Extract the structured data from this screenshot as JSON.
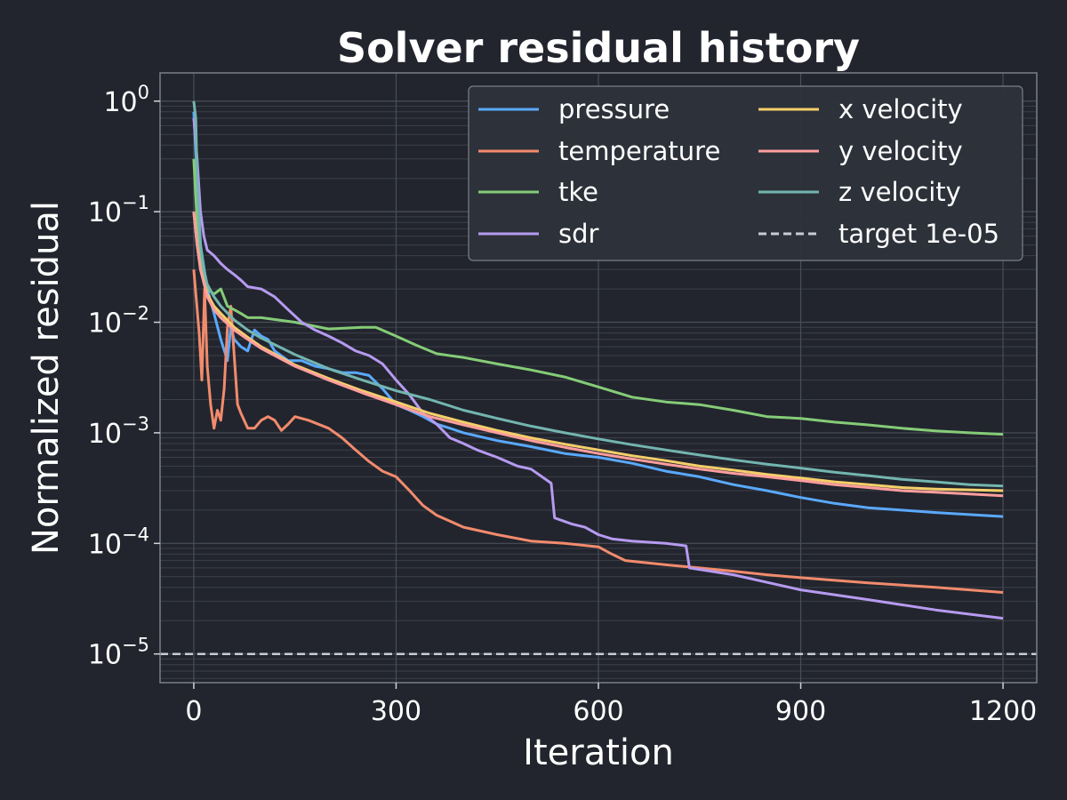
{
  "chart_data": {
    "type": "line",
    "title": "Solver residual history",
    "xlabel": "Iteration",
    "ylabel": "Normalized residual",
    "xlim": [
      -50,
      1250
    ],
    "ylim": [
      5.5e-06,
      1.8
    ],
    "yscale": "log",
    "x_ticks": [
      0,
      300,
      600,
      900,
      1200
    ],
    "x_tick_labels": [
      "0",
      "300",
      "600",
      "900",
      "1200"
    ],
    "y_ticks": [
      1e-05,
      0.0001,
      0.001,
      0.01,
      0.1,
      1
    ],
    "y_tick_labels": [
      {
        "base": "10",
        "exp": "−5"
      },
      {
        "base": "10",
        "exp": "−4"
      },
      {
        "base": "10",
        "exp": "−3"
      },
      {
        "base": "10",
        "exp": "−2"
      },
      {
        "base": "10",
        "exp": "−1"
      },
      {
        "base": "10",
        "exp": "0"
      }
    ],
    "grid": true,
    "legend_position": "top-right",
    "legend_columns": 2,
    "series": [
      {
        "name": "pressure",
        "color": "#5aa9ff",
        "points": [
          [
            0,
            0.8
          ],
          [
            10,
            0.05
          ],
          [
            20,
            0.02
          ],
          [
            30,
            0.012
          ],
          [
            40,
            0.007
          ],
          [
            50,
            0.0045
          ],
          [
            55,
            0.009
          ],
          [
            60,
            0.007
          ],
          [
            70,
            0.006
          ],
          [
            80,
            0.0055
          ],
          [
            90,
            0.0085
          ],
          [
            100,
            0.0075
          ],
          [
            110,
            0.007
          ],
          [
            120,
            0.0055
          ],
          [
            140,
            0.0045
          ],
          [
            160,
            0.0045
          ],
          [
            180,
            0.004
          ],
          [
            200,
            0.0038
          ],
          [
            220,
            0.0035
          ],
          [
            240,
            0.0035
          ],
          [
            260,
            0.0033
          ],
          [
            280,
            0.0025
          ],
          [
            300,
            0.0018
          ],
          [
            320,
            0.0016
          ],
          [
            340,
            0.0014
          ],
          [
            360,
            0.0012
          ],
          [
            380,
            0.0011
          ],
          [
            400,
            0.001
          ],
          [
            450,
            0.00085
          ],
          [
            500,
            0.00075
          ],
          [
            550,
            0.00065
          ],
          [
            600,
            0.0006
          ],
          [
            650,
            0.00053
          ],
          [
            700,
            0.00045
          ],
          [
            750,
            0.0004
          ],
          [
            800,
            0.00034
          ],
          [
            850,
            0.0003
          ],
          [
            900,
            0.00026
          ],
          [
            950,
            0.00023
          ],
          [
            1000,
            0.00021
          ],
          [
            1050,
            0.0002
          ],
          [
            1100,
            0.00019
          ],
          [
            1200,
            0.000175
          ]
        ]
      },
      {
        "name": "temperature",
        "color": "#f28b6d",
        "points": [
          [
            0,
            0.03
          ],
          [
            8,
            0.008
          ],
          [
            12,
            0.003
          ],
          [
            16,
            0.02
          ],
          [
            20,
            0.004
          ],
          [
            25,
            0.0018
          ],
          [
            30,
            0.0011
          ],
          [
            35,
            0.0016
          ],
          [
            40,
            0.0013
          ],
          [
            45,
            0.0025
          ],
          [
            50,
            0.009
          ],
          [
            55,
            0.014
          ],
          [
            60,
            0.005
          ],
          [
            65,
            0.0018
          ],
          [
            70,
            0.0015
          ],
          [
            80,
            0.0011
          ],
          [
            90,
            0.0011
          ],
          [
            100,
            0.0013
          ],
          [
            110,
            0.0014
          ],
          [
            120,
            0.0013
          ],
          [
            130,
            0.00105
          ],
          [
            140,
            0.0012
          ],
          [
            150,
            0.0014
          ],
          [
            170,
            0.0013
          ],
          [
            200,
            0.0011
          ],
          [
            220,
            0.0009
          ],
          [
            240,
            0.0007
          ],
          [
            260,
            0.00055
          ],
          [
            280,
            0.00045
          ],
          [
            300,
            0.0004
          ],
          [
            320,
            0.0003
          ],
          [
            340,
            0.00022
          ],
          [
            360,
            0.00018
          ],
          [
            400,
            0.00014
          ],
          [
            450,
            0.00012
          ],
          [
            500,
            0.000105
          ],
          [
            550,
            0.0001
          ],
          [
            600,
            9.3e-05
          ],
          [
            620,
            8e-05
          ],
          [
            640,
            7e-05
          ],
          [
            700,
            6.4e-05
          ],
          [
            750,
            6e-05
          ],
          [
            800,
            5.6e-05
          ],
          [
            850,
            5.2e-05
          ],
          [
            900,
            4.9e-05
          ],
          [
            1000,
            4.4e-05
          ],
          [
            1100,
            4e-05
          ],
          [
            1200,
            3.6e-05
          ]
        ]
      },
      {
        "name": "tke",
        "color": "#85cc78",
        "points": [
          [
            0,
            0.3
          ],
          [
            5,
            0.08
          ],
          [
            10,
            0.04
          ],
          [
            20,
            0.02
          ],
          [
            30,
            0.018
          ],
          [
            40,
            0.02
          ],
          [
            50,
            0.014
          ],
          [
            60,
            0.013
          ],
          [
            70,
            0.012
          ],
          [
            80,
            0.011
          ],
          [
            100,
            0.011
          ],
          [
            150,
            0.01
          ],
          [
            200,
            0.0087
          ],
          [
            250,
            0.009
          ],
          [
            270,
            0.009
          ],
          [
            300,
            0.0075
          ],
          [
            330,
            0.0062
          ],
          [
            360,
            0.0052
          ],
          [
            400,
            0.0048
          ],
          [
            450,
            0.0042
          ],
          [
            500,
            0.0037
          ],
          [
            550,
            0.0032
          ],
          [
            600,
            0.0026
          ],
          [
            650,
            0.0021
          ],
          [
            700,
            0.0019
          ],
          [
            750,
            0.0018
          ],
          [
            800,
            0.0016
          ],
          [
            850,
            0.0014
          ],
          [
            900,
            0.00135
          ],
          [
            950,
            0.00125
          ],
          [
            1000,
            0.00118
          ],
          [
            1050,
            0.0011
          ],
          [
            1100,
            0.00104
          ],
          [
            1150,
            0.001
          ],
          [
            1200,
            0.00097
          ]
        ]
      },
      {
        "name": "sdr",
        "color": "#b69af0",
        "points": [
          [
            0,
            0.7
          ],
          [
            5,
            0.3
          ],
          [
            10,
            0.1
          ],
          [
            15,
            0.06
          ],
          [
            20,
            0.045
          ],
          [
            30,
            0.04
          ],
          [
            40,
            0.034
          ],
          [
            50,
            0.03
          ],
          [
            60,
            0.027
          ],
          [
            70,
            0.024
          ],
          [
            80,
            0.021
          ],
          [
            100,
            0.02
          ],
          [
            120,
            0.017
          ],
          [
            140,
            0.013
          ],
          [
            160,
            0.01
          ],
          [
            180,
            0.0085
          ],
          [
            200,
            0.0075
          ],
          [
            220,
            0.0065
          ],
          [
            240,
            0.0055
          ],
          [
            260,
            0.005
          ],
          [
            280,
            0.0042
          ],
          [
            300,
            0.003
          ],
          [
            320,
            0.0022
          ],
          [
            340,
            0.0015
          ],
          [
            360,
            0.0012
          ],
          [
            380,
            0.0009
          ],
          [
            400,
            0.0008
          ],
          [
            420,
            0.0007
          ],
          [
            450,
            0.0006
          ],
          [
            480,
            0.0005
          ],
          [
            500,
            0.00047
          ],
          [
            530,
            0.00035
          ],
          [
            535,
            0.00017
          ],
          [
            560,
            0.00015
          ],
          [
            580,
            0.00014
          ],
          [
            600,
            0.00012
          ],
          [
            620,
            0.00011
          ],
          [
            650,
            0.000105
          ],
          [
            700,
            0.0001
          ],
          [
            730,
            9.5e-05
          ],
          [
            735,
            6e-05
          ],
          [
            800,
            5.2e-05
          ],
          [
            900,
            3.8e-05
          ],
          [
            1000,
            3.1e-05
          ],
          [
            1100,
            2.5e-05
          ],
          [
            1200,
            2.1e-05
          ]
        ]
      },
      {
        "name": "x velocity",
        "color": "#f5cf6a",
        "points": [
          [
            0,
            0.1
          ],
          [
            5,
            0.05
          ],
          [
            10,
            0.03
          ],
          [
            20,
            0.018
          ],
          [
            30,
            0.014
          ],
          [
            40,
            0.012
          ],
          [
            60,
            0.009
          ],
          [
            80,
            0.0073
          ],
          [
            100,
            0.006
          ],
          [
            150,
            0.0041
          ],
          [
            200,
            0.0031
          ],
          [
            250,
            0.0024
          ],
          [
            300,
            0.0019
          ],
          [
            350,
            0.0015
          ],
          [
            400,
            0.00125
          ],
          [
            450,
            0.00105
          ],
          [
            500,
            0.0009
          ],
          [
            550,
            0.00079
          ],
          [
            600,
            0.0007
          ],
          [
            650,
            0.00062
          ],
          [
            700,
            0.00056
          ],
          [
            750,
            0.0005
          ],
          [
            800,
            0.00046
          ],
          [
            850,
            0.00042
          ],
          [
            900,
            0.00039
          ],
          [
            950,
            0.00036
          ],
          [
            1000,
            0.00034
          ],
          [
            1050,
            0.00032
          ],
          [
            1100,
            0.00031
          ],
          [
            1150,
            0.000305
          ],
          [
            1200,
            0.0003
          ]
        ]
      },
      {
        "name": "y velocity",
        "color": "#ff9e9e",
        "points": [
          [
            0,
            0.1
          ],
          [
            5,
            0.05
          ],
          [
            10,
            0.03
          ],
          [
            20,
            0.017
          ],
          [
            30,
            0.013
          ],
          [
            40,
            0.011
          ],
          [
            60,
            0.0085
          ],
          [
            80,
            0.007
          ],
          [
            100,
            0.0058
          ],
          [
            150,
            0.004
          ],
          [
            200,
            0.003
          ],
          [
            250,
            0.0023
          ],
          [
            300,
            0.0018
          ],
          [
            350,
            0.0014
          ],
          [
            400,
            0.00118
          ],
          [
            450,
            0.001
          ],
          [
            500,
            0.00085
          ],
          [
            550,
            0.00074
          ],
          [
            600,
            0.00065
          ],
          [
            650,
            0.00058
          ],
          [
            700,
            0.00052
          ],
          [
            750,
            0.00047
          ],
          [
            800,
            0.00043
          ],
          [
            850,
            0.0004
          ],
          [
            900,
            0.00037
          ],
          [
            950,
            0.00034
          ],
          [
            1000,
            0.00032
          ],
          [
            1050,
            0.0003
          ],
          [
            1100,
            0.00029
          ],
          [
            1150,
            0.00028
          ],
          [
            1200,
            0.00027
          ]
        ]
      },
      {
        "name": "z velocity",
        "color": "#73b5b0",
        "points": [
          [
            0,
            1
          ],
          [
            3,
            0.7
          ],
          [
            5,
            0.2
          ],
          [
            10,
            0.05
          ],
          [
            15,
            0.03
          ],
          [
            20,
            0.022
          ],
          [
            30,
            0.017
          ],
          [
            40,
            0.014
          ],
          [
            60,
            0.0105
          ],
          [
            80,
            0.0085
          ],
          [
            100,
            0.0072
          ],
          [
            150,
            0.0051
          ],
          [
            200,
            0.0038
          ],
          [
            250,
            0.003
          ],
          [
            300,
            0.0024
          ],
          [
            350,
            0.002
          ],
          [
            400,
            0.0016
          ],
          [
            450,
            0.00135
          ],
          [
            500,
            0.00115
          ],
          [
            550,
            0.001
          ],
          [
            600,
            0.00088
          ],
          [
            650,
            0.00078
          ],
          [
            700,
            0.0007
          ],
          [
            750,
            0.00063
          ],
          [
            800,
            0.00057
          ],
          [
            850,
            0.00052
          ],
          [
            900,
            0.00048
          ],
          [
            950,
            0.00044
          ],
          [
            1000,
            0.00041
          ],
          [
            1050,
            0.00038
          ],
          [
            1100,
            0.00036
          ],
          [
            1150,
            0.00034
          ],
          [
            1200,
            0.00033
          ]
        ]
      }
    ],
    "reference_line": {
      "name": "target 1e-05",
      "value": 1e-05,
      "color": "#c8ccd4",
      "style": "dashed"
    }
  }
}
